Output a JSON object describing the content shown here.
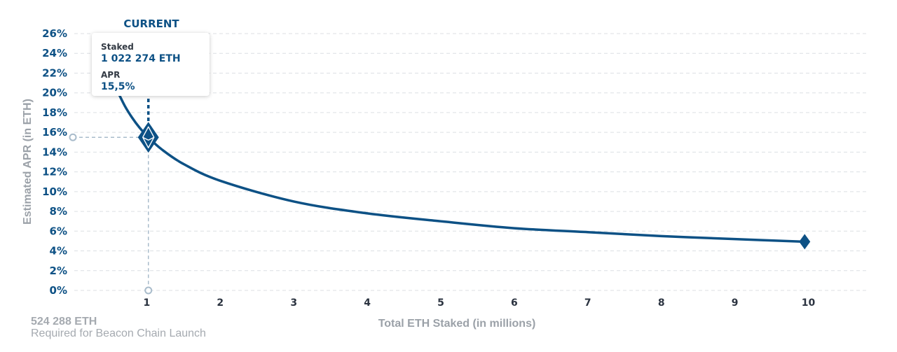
{
  "chart_data": {
    "type": "line",
    "title": "",
    "xlabel": "Total ETH Staked  (in millions)",
    "ylabel": "Estimated APR (in ETH)",
    "xlim": [
      0,
      10.5
    ],
    "ylim": [
      0,
      26
    ],
    "x_ticks": [
      1,
      2,
      3,
      4,
      5,
      6,
      7,
      8,
      9,
      10
    ],
    "y_ticks": [
      0,
      2,
      4,
      6,
      8,
      10,
      12,
      14,
      16,
      18,
      20,
      22,
      24,
      26
    ],
    "y_tick_suffix": "%",
    "grid": true,
    "series": [
      {
        "color": "#0d5185",
        "x": [
          0.6,
          0.7,
          0.8,
          0.9,
          1.022,
          1.2,
          1.5,
          2,
          3,
          4,
          5,
          6,
          7,
          8,
          9,
          9.95
        ],
        "y": [
          20.2,
          18.7,
          17.5,
          16.5,
          15.5,
          14.3,
          12.8,
          11.1,
          9.0,
          7.8,
          7.0,
          6.3,
          5.9,
          5.5,
          5.2,
          4.93
        ]
      }
    ],
    "current_point": {
      "x": 1.022274,
      "y": 15.5
    },
    "end_point": {
      "x": 9.95,
      "y": 4.93
    },
    "annotation": "CURRENT"
  },
  "tooltip": {
    "staked_label": "Staked",
    "staked_value": "1 022 274 ETH",
    "apr_label": "APR",
    "apr_value": "15,5%"
  },
  "note": {
    "amount": "524 288 ETH",
    "text": "Required for Beacon Chain Launch"
  }
}
